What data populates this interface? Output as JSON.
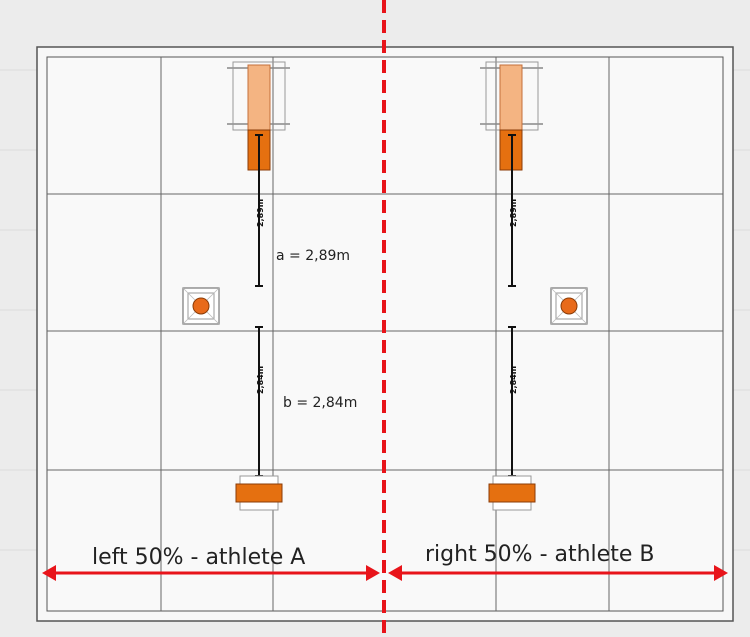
{
  "colors": {
    "background": "#ececec",
    "floor": "#f7f7f7",
    "grid_line": "#555555",
    "divider": "#e8141a",
    "arrow": "#e8141a",
    "equipment_dark": "#e57010",
    "equipment_light": "#f4b482",
    "marker_orange": "#e86a1a",
    "measure_line": "#111111"
  },
  "icons": {
    "marker": "square-marker-with-orange-circle-icon",
    "arrow": "double-headed-red-arrow-icon"
  },
  "measurements": {
    "a_label": "a = 2,89m",
    "b_label": "b = 2,84m",
    "a_dim_text": "2,89m",
    "b_dim_text": "2,84m"
  },
  "zones": {
    "left_label": "left 50% - athlete A",
    "right_label": "right 50% - athlete B"
  }
}
